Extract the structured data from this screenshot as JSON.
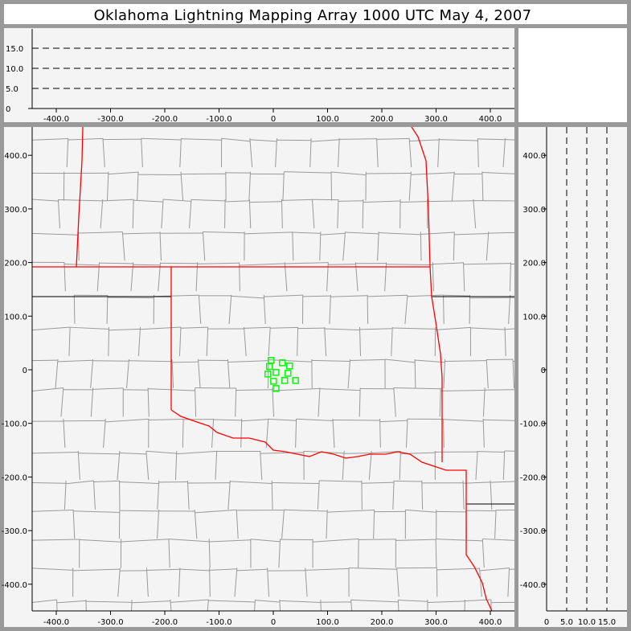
{
  "title": "Oklahoma Lightning Mapping Array   1000 UTC  May 4, 2007",
  "colors": {
    "background": "#999999",
    "panel": "#f4f4f4",
    "state_border": "#ff0000",
    "county_border": "#999999",
    "source": "#00ff00"
  },
  "plan_view": {
    "x_ticks": [
      "-400.0",
      "-300.0",
      "-200.0",
      "-100.0",
      "0",
      "100.0",
      "200.0",
      "300.0",
      "400.0"
    ],
    "y_ticks": [
      "400.0",
      "300.0",
      "200.0",
      "100.0",
      "0",
      "-100.0",
      "-200.0",
      "-300.0",
      "-400.0"
    ],
    "x_range_km": [
      -445,
      445
    ],
    "y_range_km": [
      -450,
      453
    ]
  },
  "top_panel": {
    "x_ticks": [
      "-400.0",
      "-300.0",
      "-200.0",
      "-100.0",
      "0",
      "100.0",
      "200.0",
      "300.0",
      "400.0"
    ],
    "y_ticks": [
      "0",
      "5.0",
      "10.0",
      "15.0"
    ],
    "height_range_km": [
      0,
      20
    ]
  },
  "right_panel": {
    "x_ticks": [
      "0",
      "5.0",
      "10.0",
      "15.0"
    ],
    "y_ticks": [
      "400.0",
      "300.0",
      "200.0",
      "100.0",
      "0",
      "-100.0",
      "-200.0",
      "-300.0",
      "-400.0"
    ]
  },
  "sources_km": [
    [
      -4,
      17.5
    ],
    [
      16.7,
      13
    ],
    [
      30,
      7
    ],
    [
      -7,
      6
    ],
    [
      5,
      -5
    ],
    [
      27,
      -6.5
    ],
    [
      -10,
      -8
    ],
    [
      0.5,
      -21.5
    ],
    [
      21,
      -20
    ],
    [
      41,
      -20
    ],
    [
      5,
      -35
    ]
  ]
}
